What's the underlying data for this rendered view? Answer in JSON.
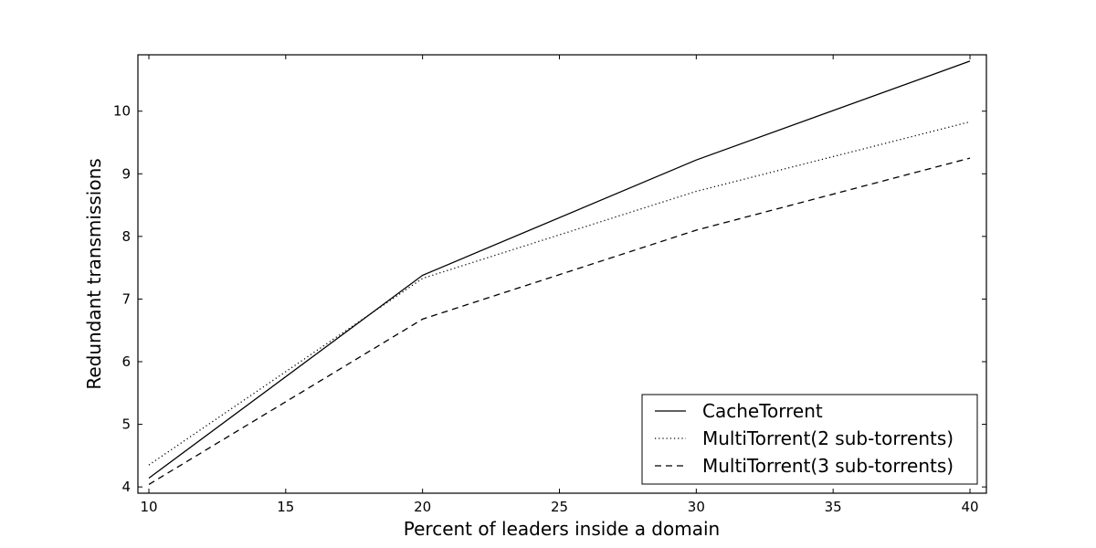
{
  "chart_data": {
    "type": "line",
    "title": "",
    "xlabel": "Percent of leaders inside a domain",
    "ylabel": "Redundant transmissions",
    "xlim": [
      9.6,
      40.6
    ],
    "ylim": [
      3.9,
      10.9
    ],
    "xticks": [
      10,
      15,
      20,
      25,
      30,
      35,
      40
    ],
    "yticks": [
      4,
      5,
      6,
      7,
      8,
      9,
      10
    ],
    "grid": false,
    "legend_position": "lower-right",
    "x": [
      10,
      20,
      30,
      40
    ],
    "series": [
      {
        "name": "CacheTorrent",
        "style": "solid",
        "color": "#000000",
        "values": [
          4.14,
          7.38,
          9.22,
          10.8
        ]
      },
      {
        "name": "MultiTorrent(2 sub-torrents)",
        "style": "dotted",
        "color": "#000000",
        "values": [
          4.35,
          7.33,
          8.72,
          9.83
        ]
      },
      {
        "name": "MultiTorrent(3 sub-torrents)",
        "style": "dashed",
        "color": "#000000",
        "values": [
          4.04,
          6.68,
          8.1,
          9.25
        ]
      }
    ]
  }
}
